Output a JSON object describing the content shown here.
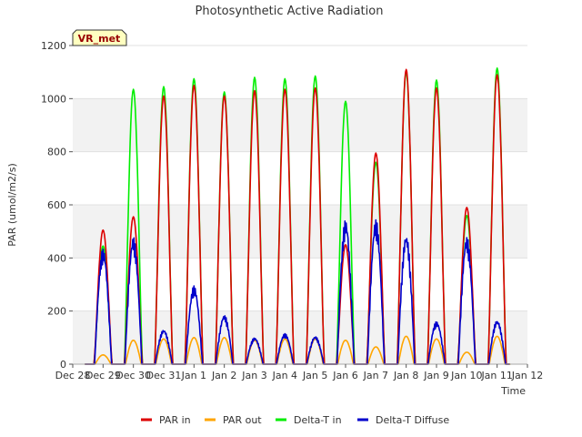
{
  "chart_data": {
    "type": "line",
    "title": "Photosynthetic Active Radiation",
    "xlabel": "Time",
    "ylabel": "PAR (umol/m2/s)",
    "site_label": "VR_met",
    "ylim": [
      0,
      1200
    ],
    "xlim": [
      0,
      15
    ],
    "yticks": [
      0,
      200,
      400,
      600,
      800,
      1000,
      1200
    ],
    "xtick_labels": [
      "Dec 28",
      "Dec 29",
      "Dec 30",
      "Dec 31",
      "Jan 1",
      "Jan 2",
      "Jan 3",
      "Jan 4",
      "Jan 5",
      "Jan 6",
      "Jan 7",
      "Jan 8",
      "Jan 9",
      "Jan 10",
      "Jan 11",
      "Jan 12"
    ],
    "x_data_unit": "days since Dec 28 00:00",
    "data_start": 0.4,
    "data_end": 14.4,
    "days": [
      1,
      2,
      3,
      4,
      5,
      6,
      7,
      8,
      9,
      10,
      11,
      12,
      13,
      14
    ],
    "series": [
      {
        "name": "PAR in",
        "color": "#dd0000",
        "daily_peak": [
          505,
          555,
          1010,
          1050,
          1010,
          1030,
          1035,
          1040,
          450,
          795,
          1110,
          1040,
          590,
          1090
        ]
      },
      {
        "name": "PAR out",
        "color": "#ffa500",
        "daily_peak": [
          35,
          90,
          95,
          100,
          100,
          90,
          95,
          95,
          90,
          65,
          105,
          95,
          45,
          105
        ]
      },
      {
        "name": "Delta-T in",
        "color": "#00ee00",
        "daily_peak": [
          445,
          1035,
          1045,
          1075,
          1025,
          1080,
          1075,
          1085,
          990,
          760,
          1100,
          1070,
          560,
          1115
        ]
      },
      {
        "name": "Delta-T Diffuse",
        "color": "#0000cc",
        "daily_peak": [
          435,
          480,
          130,
          295,
          185,
          100,
          115,
          105,
          545,
          545,
          490,
          160,
          480,
          165
        ]
      }
    ],
    "legend_position": "bottom-center",
    "grid": "alternating horizontal bands"
  }
}
